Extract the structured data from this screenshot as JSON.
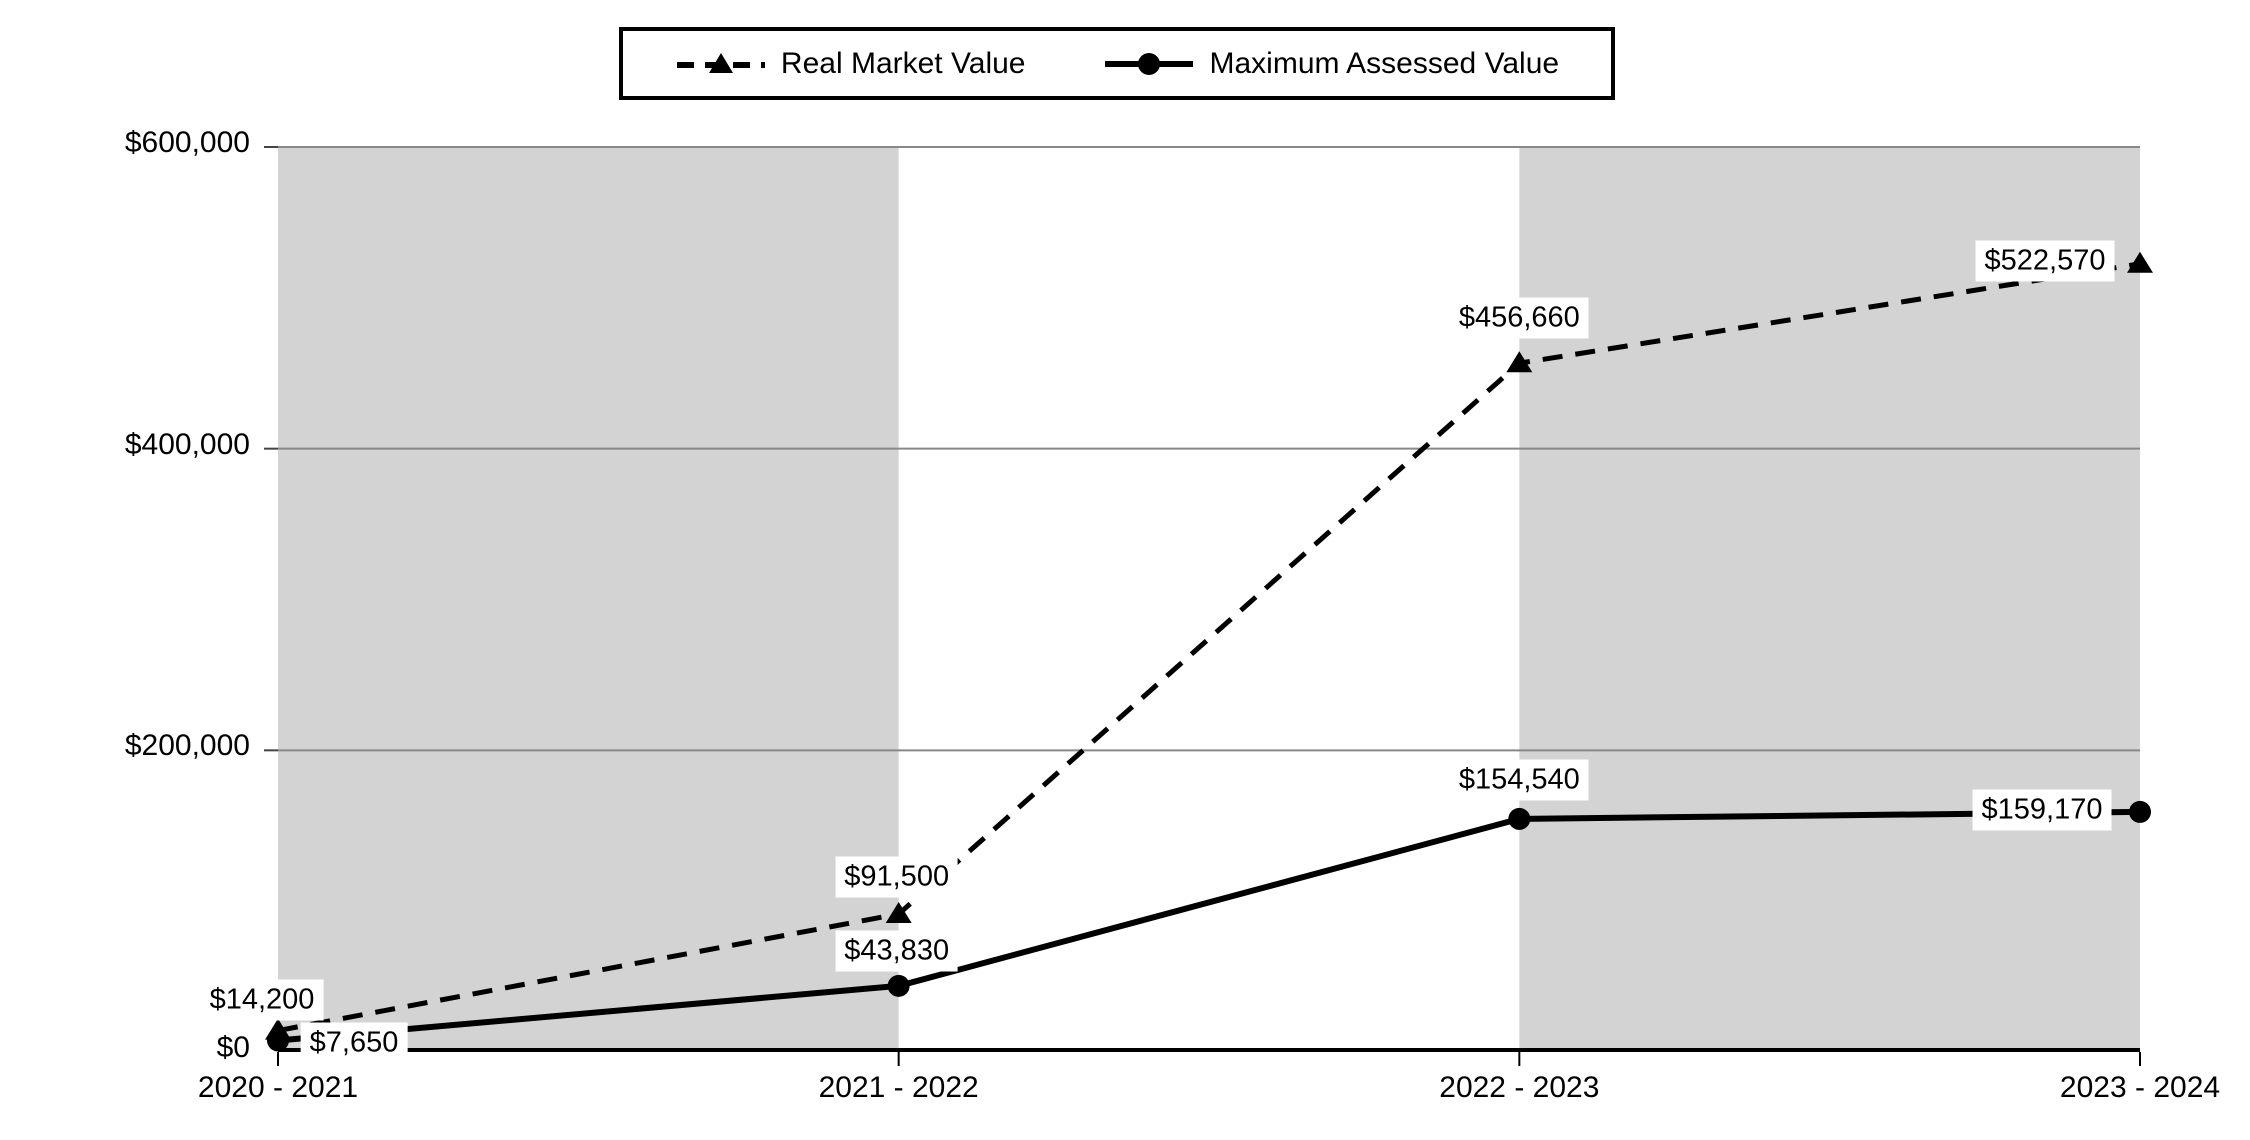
{
  "legend": {
    "items": [
      {
        "label": "Real Market Value",
        "marker": "triangle-dashed-line-icon"
      },
      {
        "label": "Maximum Assessed Value",
        "marker": "circle-solid-line-icon"
      }
    ]
  },
  "chart_data": {
    "type": "line",
    "categories": [
      "2020 - 2021",
      "2021 - 2022",
      "2022 - 2023",
      "2023 - 2024"
    ],
    "series": [
      {
        "name": "Real Market Value",
        "style": "dashed",
        "marker": "triangle",
        "values": [
          14200,
          91500,
          456660,
          522570
        ],
        "labels": [
          "$14,200",
          "$91,500",
          "$456,660",
          "$522,570"
        ]
      },
      {
        "name": "Maximum Assessed Value",
        "style": "solid",
        "marker": "circle",
        "values": [
          7650,
          43830,
          154540,
          159170
        ],
        "labels": [
          "$7,650",
          "$43,830",
          "$154,540",
          "$159,170"
        ]
      }
    ],
    "ylim": [
      0,
      600000
    ],
    "yticks": [
      0,
      200000,
      400000,
      600000
    ],
    "ytick_labels": [
      "$0",
      "$200,000",
      "$400,000",
      "$600,000"
    ],
    "grid": "horizontal-gray-lines",
    "legend_position": "top-center",
    "plot_bands": "alternating vertical bands between category columns, starting gray",
    "colors": {
      "line": "#000000",
      "band": "#d3d3d3",
      "gridline": "#888888",
      "axis": "#000000",
      "label_bg": "#ffffff",
      "text": "#000000"
    }
  }
}
